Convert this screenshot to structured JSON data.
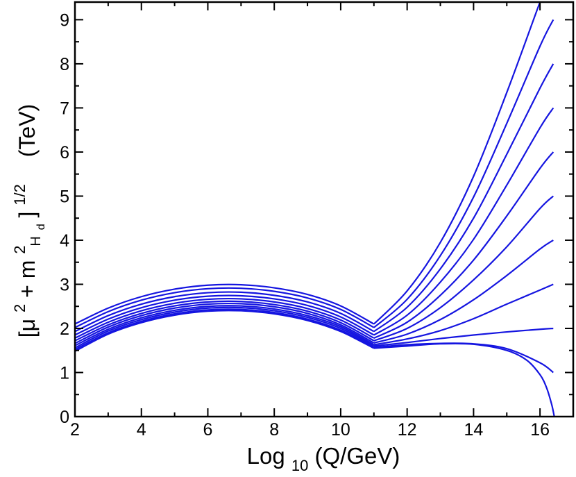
{
  "chart_data": {
    "type": "line",
    "x_axis": {
      "label_main": "Log",
      "label_sub": "10",
      "label_rest": "(Q/GeV)",
      "range": [
        2,
        17
      ],
      "ticks": [
        2,
        4,
        6,
        8,
        10,
        12,
        14,
        16
      ],
      "tick_labels": [
        "2",
        "4",
        "6",
        "8",
        "10",
        "12",
        "14",
        "16"
      ]
    },
    "y_axis": {
      "label_parts": {
        "open": "[μ",
        "sup2a": "2",
        "plus": " + m",
        "sup2b": "2",
        "sub_H": "H",
        "sub_d": "d",
        "close": "]",
        "power": "1/2",
        "units": "(TeV)"
      },
      "range": [
        0,
        9.4
      ],
      "ticks": [
        0,
        1,
        2,
        3,
        4,
        5,
        6,
        7,
        8,
        9
      ],
      "tick_labels": [
        "0",
        "1",
        "2",
        "3",
        "4",
        "5",
        "6",
        "7",
        "8",
        "9"
      ]
    },
    "grid": false,
    "line_color": "#1515e0",
    "series": [
      {
        "values": [
          [
            2,
            1.48
          ],
          [
            3,
            1.87
          ],
          [
            4,
            2.13
          ],
          [
            5,
            2.3
          ],
          [
            6,
            2.39
          ],
          [
            7,
            2.4
          ],
          [
            8,
            2.33
          ],
          [
            9,
            2.18
          ],
          [
            10,
            1.93
          ],
          [
            11,
            1.55
          ],
          [
            12,
            1.6
          ],
          [
            13,
            1.65
          ],
          [
            14,
            1.64
          ],
          [
            15,
            1.5
          ],
          [
            15.6,
            1.28
          ],
          [
            16,
            0.95
          ],
          [
            16.2,
            0.65
          ],
          [
            16.35,
            0.28
          ],
          [
            16.43,
            0.0
          ]
        ]
      },
      {
        "values": [
          [
            2,
            1.52
          ],
          [
            3,
            1.9
          ],
          [
            4,
            2.16
          ],
          [
            5,
            2.33
          ],
          [
            6,
            2.42
          ],
          [
            7,
            2.43
          ],
          [
            8,
            2.36
          ],
          [
            9,
            2.21
          ],
          [
            10,
            1.96
          ],
          [
            11,
            1.57
          ],
          [
            12,
            1.63
          ],
          [
            13,
            1.66
          ],
          [
            14,
            1.65
          ],
          [
            15,
            1.54
          ],
          [
            16,
            1.22
          ],
          [
            16.4,
            1.0
          ]
        ]
      },
      {
        "values": [
          [
            2,
            1.56
          ],
          [
            3,
            1.94
          ],
          [
            4,
            2.2
          ],
          [
            5,
            2.37
          ],
          [
            6,
            2.46
          ],
          [
            7,
            2.47
          ],
          [
            8,
            2.4
          ],
          [
            9,
            2.25
          ],
          [
            10,
            2.0
          ],
          [
            11,
            1.6
          ],
          [
            12,
            1.68
          ],
          [
            13,
            1.77
          ],
          [
            14,
            1.85
          ],
          [
            15,
            1.92
          ],
          [
            16,
            1.98
          ],
          [
            16.4,
            2.0
          ]
        ]
      },
      {
        "values": [
          [
            2,
            1.61
          ],
          [
            3,
            1.98
          ],
          [
            4,
            2.24
          ],
          [
            5,
            2.41
          ],
          [
            6,
            2.5
          ],
          [
            7,
            2.51
          ],
          [
            8,
            2.44
          ],
          [
            9,
            2.29
          ],
          [
            10,
            2.04
          ],
          [
            11,
            1.63
          ],
          [
            12,
            1.76
          ],
          [
            13,
            1.95
          ],
          [
            14,
            2.22
          ],
          [
            15,
            2.55
          ],
          [
            16,
            2.87
          ],
          [
            16.4,
            3.0
          ]
        ]
      },
      {
        "values": [
          [
            2,
            1.66
          ],
          [
            3,
            2.03
          ],
          [
            4,
            2.29
          ],
          [
            5,
            2.46
          ],
          [
            6,
            2.55
          ],
          [
            7,
            2.56
          ],
          [
            8,
            2.49
          ],
          [
            9,
            2.34
          ],
          [
            10,
            2.08
          ],
          [
            11,
            1.67
          ],
          [
            12,
            1.87
          ],
          [
            13,
            2.2
          ],
          [
            14,
            2.65
          ],
          [
            15,
            3.2
          ],
          [
            16,
            3.8
          ],
          [
            16.4,
            4.0
          ]
        ]
      },
      {
        "values": [
          [
            2,
            1.72
          ],
          [
            3,
            2.08
          ],
          [
            4,
            2.34
          ],
          [
            5,
            2.51
          ],
          [
            6,
            2.6
          ],
          [
            7,
            2.61
          ],
          [
            8,
            2.54
          ],
          [
            9,
            2.39
          ],
          [
            10,
            2.13
          ],
          [
            11,
            1.72
          ],
          [
            12,
            2.0
          ],
          [
            13,
            2.47
          ],
          [
            14,
            3.1
          ],
          [
            15,
            3.85
          ],
          [
            16,
            4.72
          ],
          [
            16.4,
            5.0
          ]
        ]
      },
      {
        "values": [
          [
            2,
            1.78
          ],
          [
            3,
            2.14
          ],
          [
            4,
            2.4
          ],
          [
            5,
            2.57
          ],
          [
            6,
            2.66
          ],
          [
            7,
            2.67
          ],
          [
            8,
            2.6
          ],
          [
            9,
            2.45
          ],
          [
            10,
            2.19
          ],
          [
            11,
            1.78
          ],
          [
            12,
            2.14
          ],
          [
            13,
            2.75
          ],
          [
            14,
            3.55
          ],
          [
            15,
            4.55
          ],
          [
            16,
            5.63
          ],
          [
            16.4,
            6.0
          ]
        ]
      },
      {
        "values": [
          [
            2,
            1.85
          ],
          [
            3,
            2.21
          ],
          [
            4,
            2.47
          ],
          [
            5,
            2.64
          ],
          [
            6,
            2.73
          ],
          [
            7,
            2.74
          ],
          [
            8,
            2.67
          ],
          [
            9,
            2.52
          ],
          [
            10,
            2.26
          ],
          [
            11,
            1.85
          ],
          [
            12,
            2.3
          ],
          [
            13,
            3.05
          ],
          [
            14,
            4.02
          ],
          [
            15,
            5.25
          ],
          [
            16,
            6.55
          ],
          [
            16.4,
            7.0
          ]
        ]
      },
      {
        "values": [
          [
            2,
            1.93
          ],
          [
            3,
            2.29
          ],
          [
            4,
            2.55
          ],
          [
            5,
            2.72
          ],
          [
            6,
            2.81
          ],
          [
            7,
            2.82
          ],
          [
            8,
            2.75
          ],
          [
            9,
            2.6
          ],
          [
            10,
            2.34
          ],
          [
            11,
            1.93
          ],
          [
            12,
            2.48
          ],
          [
            13,
            3.35
          ],
          [
            14,
            4.5
          ],
          [
            15,
            5.95
          ],
          [
            16,
            7.45
          ],
          [
            16.4,
            8.0
          ]
        ]
      },
      {
        "values": [
          [
            2,
            2.02
          ],
          [
            3,
            2.38
          ],
          [
            4,
            2.64
          ],
          [
            5,
            2.81
          ],
          [
            6,
            2.9
          ],
          [
            7,
            2.91
          ],
          [
            8,
            2.84
          ],
          [
            9,
            2.69
          ],
          [
            10,
            2.43
          ],
          [
            11,
            2.02
          ],
          [
            12,
            2.66
          ],
          [
            13,
            3.65
          ],
          [
            14,
            4.98
          ],
          [
            15,
            6.65
          ],
          [
            16,
            8.4
          ],
          [
            16.4,
            9.0
          ]
        ]
      },
      {
        "values": [
          [
            2,
            2.1
          ],
          [
            3,
            2.46
          ],
          [
            4,
            2.72
          ],
          [
            5,
            2.89
          ],
          [
            6,
            2.98
          ],
          [
            7,
            2.99
          ],
          [
            8,
            2.92
          ],
          [
            9,
            2.77
          ],
          [
            10,
            2.51
          ],
          [
            11,
            2.1
          ],
          [
            12,
            2.85
          ],
          [
            13,
            3.95
          ],
          [
            14,
            5.45
          ],
          [
            15,
            7.35
          ],
          [
            16,
            9.4
          ],
          [
            16.2,
            9.75
          ]
        ]
      }
    ]
  }
}
